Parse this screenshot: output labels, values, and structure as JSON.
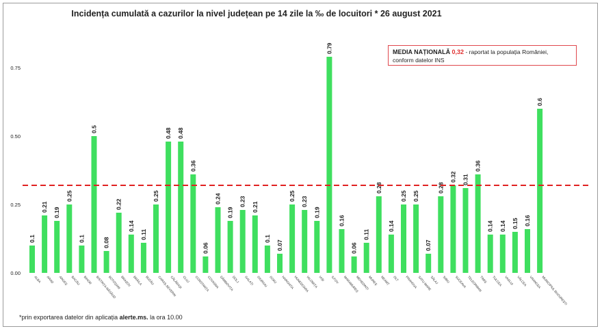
{
  "title": "Incidența cumulată a cazurilor la nivel județean pe 14 zile la ‰ de locuitori * 26 august 2021",
  "note": {
    "label": "MEDIA NAȚIONALĂ",
    "value": "0,32",
    "text_1": " - raportat la populația României,",
    "text_2": "conform datelor INS"
  },
  "footnote": {
    "prefix": "*prin exportarea datelor din aplicația ",
    "bold": "alerte.ms.",
    "suffix": " la ora 10.00"
  },
  "colors": {
    "bar": "#3fdf5f",
    "reference_line": "#e02020",
    "box_border": "#e0474c"
  },
  "chart_data": {
    "type": "bar",
    "title": "Incidența cumulată a cazurilor la nivel județean pe 14 zile la ‰ de locuitori * 26 august 2021",
    "categories": [
      "ALBA",
      "ARAD",
      "ARGEȘ",
      "BACĂU",
      "BIHOR",
      "BISTRIȚA-NĂSĂUD",
      "BOTOȘANI",
      "BRAȘOV",
      "BRĂILA",
      "BUZĂU",
      "CARAȘ-SEVERIN",
      "CĂLĂRAȘI",
      "CLUJ",
      "CONSTANȚA",
      "COVASNA",
      "DÂMBOVIȚA",
      "DOLJ",
      "GALAȚI",
      "GIURGIU",
      "GORJ",
      "HARGHITA",
      "HUNEDOARA",
      "IALOMIȚA",
      "IAȘI",
      "ILFOV",
      "MARAMUREȘ",
      "MEHEDINȚI",
      "MUREȘ",
      "NEAMȚ",
      "OLT",
      "PRAHOVA",
      "SATU MARE",
      "SĂLAJ",
      "SIBIU",
      "SUCEAVA",
      "TELEORMAN",
      "TIMIȘ",
      "TULCEA",
      "VASLUI",
      "VÂLCEA",
      "VRANCEA",
      "MUNICIPIUL BUCUREȘTI"
    ],
    "values": [
      0.1,
      0.21,
      0.19,
      0.25,
      0.1,
      0.5,
      0.08,
      0.22,
      0.14,
      0.11,
      0.25,
      0.48,
      0.48,
      0.36,
      0.06,
      0.24,
      0.19,
      0.23,
      0.21,
      0.1,
      0.07,
      0.25,
      0.23,
      0.19,
      0.79,
      0.16,
      0.06,
      0.11,
      0.28,
      0.14,
      0.25,
      0.25,
      0.07,
      0.28,
      0.32,
      0.31,
      0.36,
      0.14,
      0.14,
      0.15,
      0.16,
      0.6
    ],
    "reference_line": 0.32,
    "yticks": [
      0.0,
      0.25,
      0.5,
      0.75
    ],
    "ytick_labels": [
      "0.00",
      "0.25",
      "0.50",
      "0.75"
    ],
    "ylim": [
      0,
      0.8
    ],
    "grid": false,
    "legend": "none"
  }
}
